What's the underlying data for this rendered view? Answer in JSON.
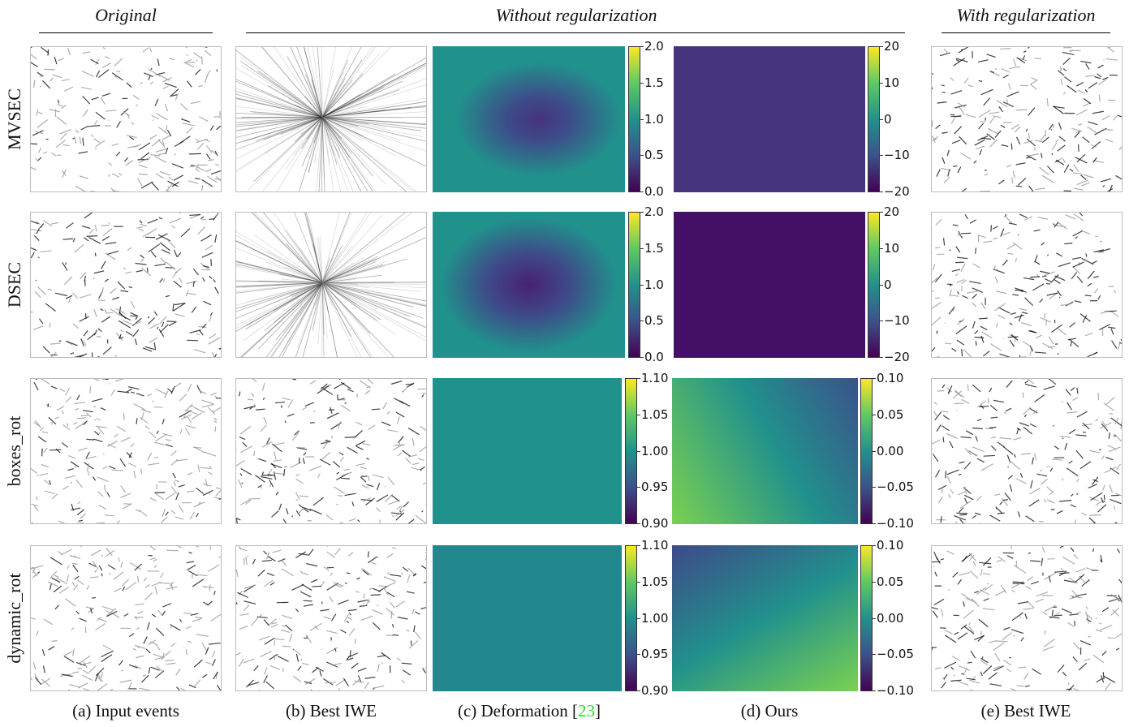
{
  "headers": [
    "Original",
    "Without regularization",
    "With regularization"
  ],
  "rows": [
    {
      "label": "MVSEC",
      "c_ticks": [
        "2.0",
        "1.5",
        "1.0",
        "0.5",
        "0.0"
      ],
      "d_ticks": [
        "20",
        "10",
        "0",
        "−10",
        "−20"
      ]
    },
    {
      "label": "DSEC",
      "c_ticks": [
        "2.0",
        "1.5",
        "1.0",
        "0.5",
        "0.0"
      ],
      "d_ticks": [
        "20",
        "10",
        "0",
        "−10",
        "−20"
      ]
    },
    {
      "label": "boxes_rot",
      "c_ticks": [
        "1.10",
        "1.05",
        "1.00",
        "0.95",
        "0.90"
      ],
      "d_ticks": [
        "0.10",
        "0.05",
        "0.00",
        "−0.05",
        "−0.10"
      ]
    },
    {
      "label": "dynamic_rot",
      "c_ticks": [
        "1.10",
        "1.05",
        "1.00",
        "0.95",
        "0.90"
      ],
      "d_ticks": [
        "0.10",
        "0.05",
        "0.00",
        "−0.05",
        "−0.10"
      ]
    }
  ],
  "captions": [
    {
      "text": "(a) Input events"
    },
    {
      "text": "(b) Best IWE"
    },
    {
      "text": "(c) Deformation [",
      "ref": "23",
      "close": "]"
    },
    {
      "text": "(d) Ours"
    },
    {
      "text": "(e) Best IWE"
    }
  ]
}
